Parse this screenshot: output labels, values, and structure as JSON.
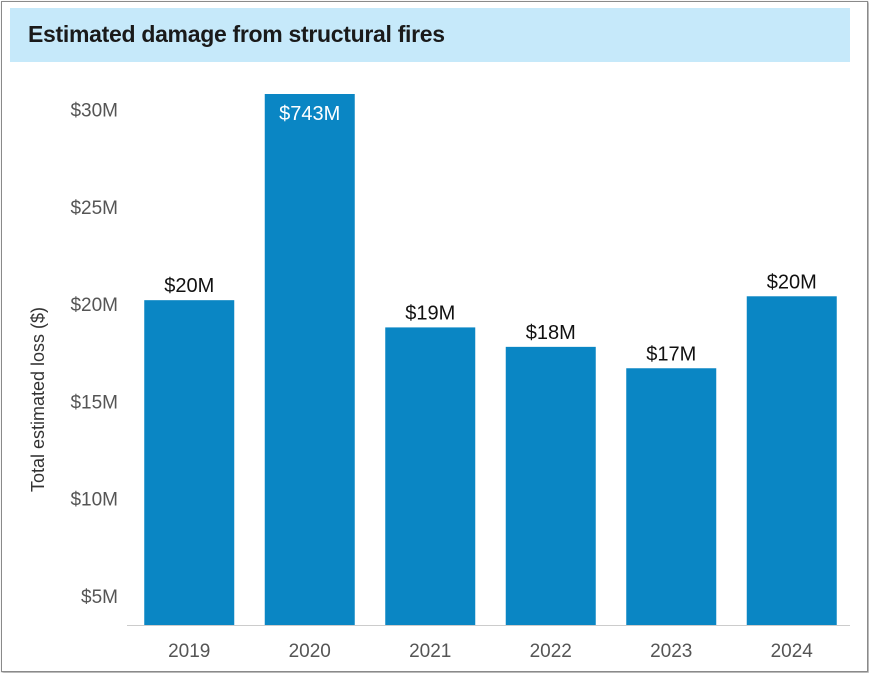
{
  "header": {
    "title": "Estimated damage from structural fires"
  },
  "colors": {
    "bar": "#0a86c4",
    "title_background": "#c6e9fa",
    "axis": "#cccccc"
  },
  "chart_data": {
    "type": "bar",
    "title": "Estimated damage from structural fires",
    "xlabel": "",
    "ylabel": "Total estimated loss ($)",
    "categories": [
      "2019",
      "2020",
      "2021",
      "2022",
      "2023",
      "2024"
    ],
    "values": [
      20.2,
      743,
      18.8,
      17.8,
      16.7,
      20.4
    ],
    "data_labels": [
      "$20M",
      "$743M",
      "$19M",
      "$18M",
      "$17M",
      "$20M"
    ],
    "ylim": [
      3.5,
      30.8
    ],
    "yticks": [
      5,
      10,
      15,
      20,
      25,
      30
    ],
    "ytick_labels": [
      "$5M",
      "$10M",
      "$15M",
      "$20M",
      "$25M",
      "$30M"
    ],
    "grid": false,
    "legend": "none",
    "note": "y-axis truncated; 2020 bar extends beyond the visible range"
  }
}
